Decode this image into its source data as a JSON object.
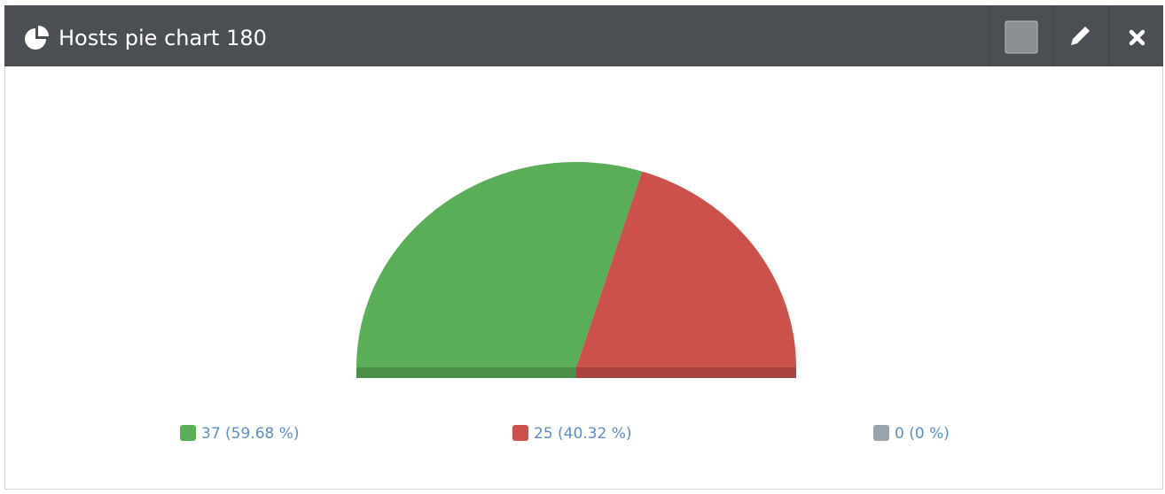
{
  "chart_data": {
    "type": "pie",
    "title": "Hosts pie chart 180",
    "semicircle": true,
    "values": [
      37,
      25,
      0
    ],
    "value_labels": [
      "37 (59.68 %)",
      "25 (40.32 %)",
      "0 (0 %)"
    ],
    "colors": [
      "#5aae57",
      "#cc504b",
      "#9aa3a9"
    ]
  }
}
